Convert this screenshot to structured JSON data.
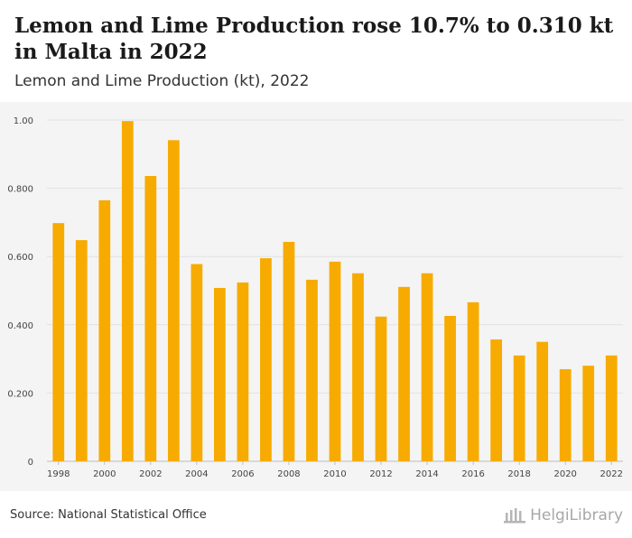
{
  "header": {
    "title": "Lemon and Lime Production rose 10.7% to 0.310 kt in Malta in 2022",
    "subtitle": "Lemon and Lime Production (kt), 2022"
  },
  "footer": {
    "source": "Source: National Statistical Office",
    "logo_text": "HelgiLibrary"
  },
  "colors": {
    "bar": "#f7ab00",
    "grid": "#e2e2e2",
    "axis_text": "#444444"
  },
  "chart_data": {
    "type": "bar",
    "title": "Lemon and Lime Production rose 10.7% to 0.310 kt in Malta in 2022",
    "subtitle": "Lemon and Lime Production (kt), 2022",
    "xlabel": "",
    "ylabel": "",
    "ylim": [
      0,
      1.0
    ],
    "grid": true,
    "yticks": [
      "0",
      "0.200",
      "0.400",
      "0.600",
      "0.800",
      "1.00"
    ],
    "xticks": [
      "1998",
      "2000",
      "2002",
      "2004",
      "2006",
      "2008",
      "2010",
      "2012",
      "2014",
      "2016",
      "2018",
      "2020",
      "2022"
    ],
    "categories": [
      "1998",
      "1999",
      "2000",
      "2001",
      "2002",
      "2003",
      "2004",
      "2005",
      "2006",
      "2007",
      "2008",
      "2009",
      "2010",
      "2011",
      "2012",
      "2013",
      "2014",
      "2015",
      "2016",
      "2017",
      "2018",
      "2019",
      "2020",
      "2021",
      "2022"
    ],
    "values": [
      0.698,
      0.648,
      0.765,
      0.997,
      0.836,
      0.941,
      0.578,
      0.508,
      0.524,
      0.595,
      0.643,
      0.532,
      0.585,
      0.551,
      0.424,
      0.511,
      0.551,
      0.426,
      0.466,
      0.357,
      0.31,
      0.35,
      0.27,
      0.28,
      0.31
    ]
  }
}
